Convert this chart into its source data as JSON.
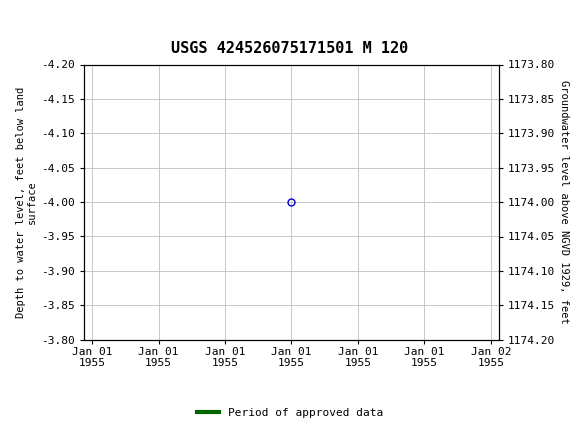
{
  "title": "USGS 424526075171501 M 120",
  "title_fontsize": 11,
  "header_color": "#1a6b3c",
  "bg_color": "#ffffff",
  "plot_bg_color": "#ffffff",
  "grid_color": "#c8c8c8",
  "ylabel_left": "Depth to water level, feet below land\nsurface",
  "ylabel_right": "Groundwater level above NGVD 1929, feet",
  "ylim_left": [
    -4.2,
    -3.8
  ],
  "ylim_right": [
    1173.8,
    1174.2
  ],
  "yticks_left": [
    -4.2,
    -4.15,
    -4.1,
    -4.05,
    -4.0,
    -3.95,
    -3.9,
    -3.85,
    -3.8
  ],
  "yticks_right": [
    1173.8,
    1173.85,
    1173.9,
    1173.95,
    1174.0,
    1174.05,
    1174.1,
    1174.15,
    1174.2
  ],
  "ytick_labels_left": [
    "-4.20",
    "-4.15",
    "-4.10",
    "-4.05",
    "-4.00",
    "-3.95",
    "-3.90",
    "-3.85",
    "-3.80"
  ],
  "ytick_labels_right": [
    "1173.80",
    "1173.85",
    "1173.90",
    "1173.95",
    "1174.00",
    "1174.05",
    "1174.10",
    "1174.15",
    "1174.20"
  ],
  "xtick_labels": [
    "Jan 01\n1955",
    "Jan 01\n1955",
    "Jan 01\n1955",
    "Jan 01\n1955",
    "Jan 01\n1955",
    "Jan 01\n1955",
    "Jan 02\n1955"
  ],
  "data_x": [
    0.5
  ],
  "data_y": [
    -4.0
  ],
  "data_color": "#0000cc",
  "data_marker": "o",
  "data_marker_size": 5,
  "data_marker_facecolor": "none",
  "legend_label": "Period of approved data",
  "legend_color": "#006400",
  "font_family": "monospace",
  "tick_fontsize": 8,
  "label_fontsize": 7.5,
  "axis_fontsize": 8
}
